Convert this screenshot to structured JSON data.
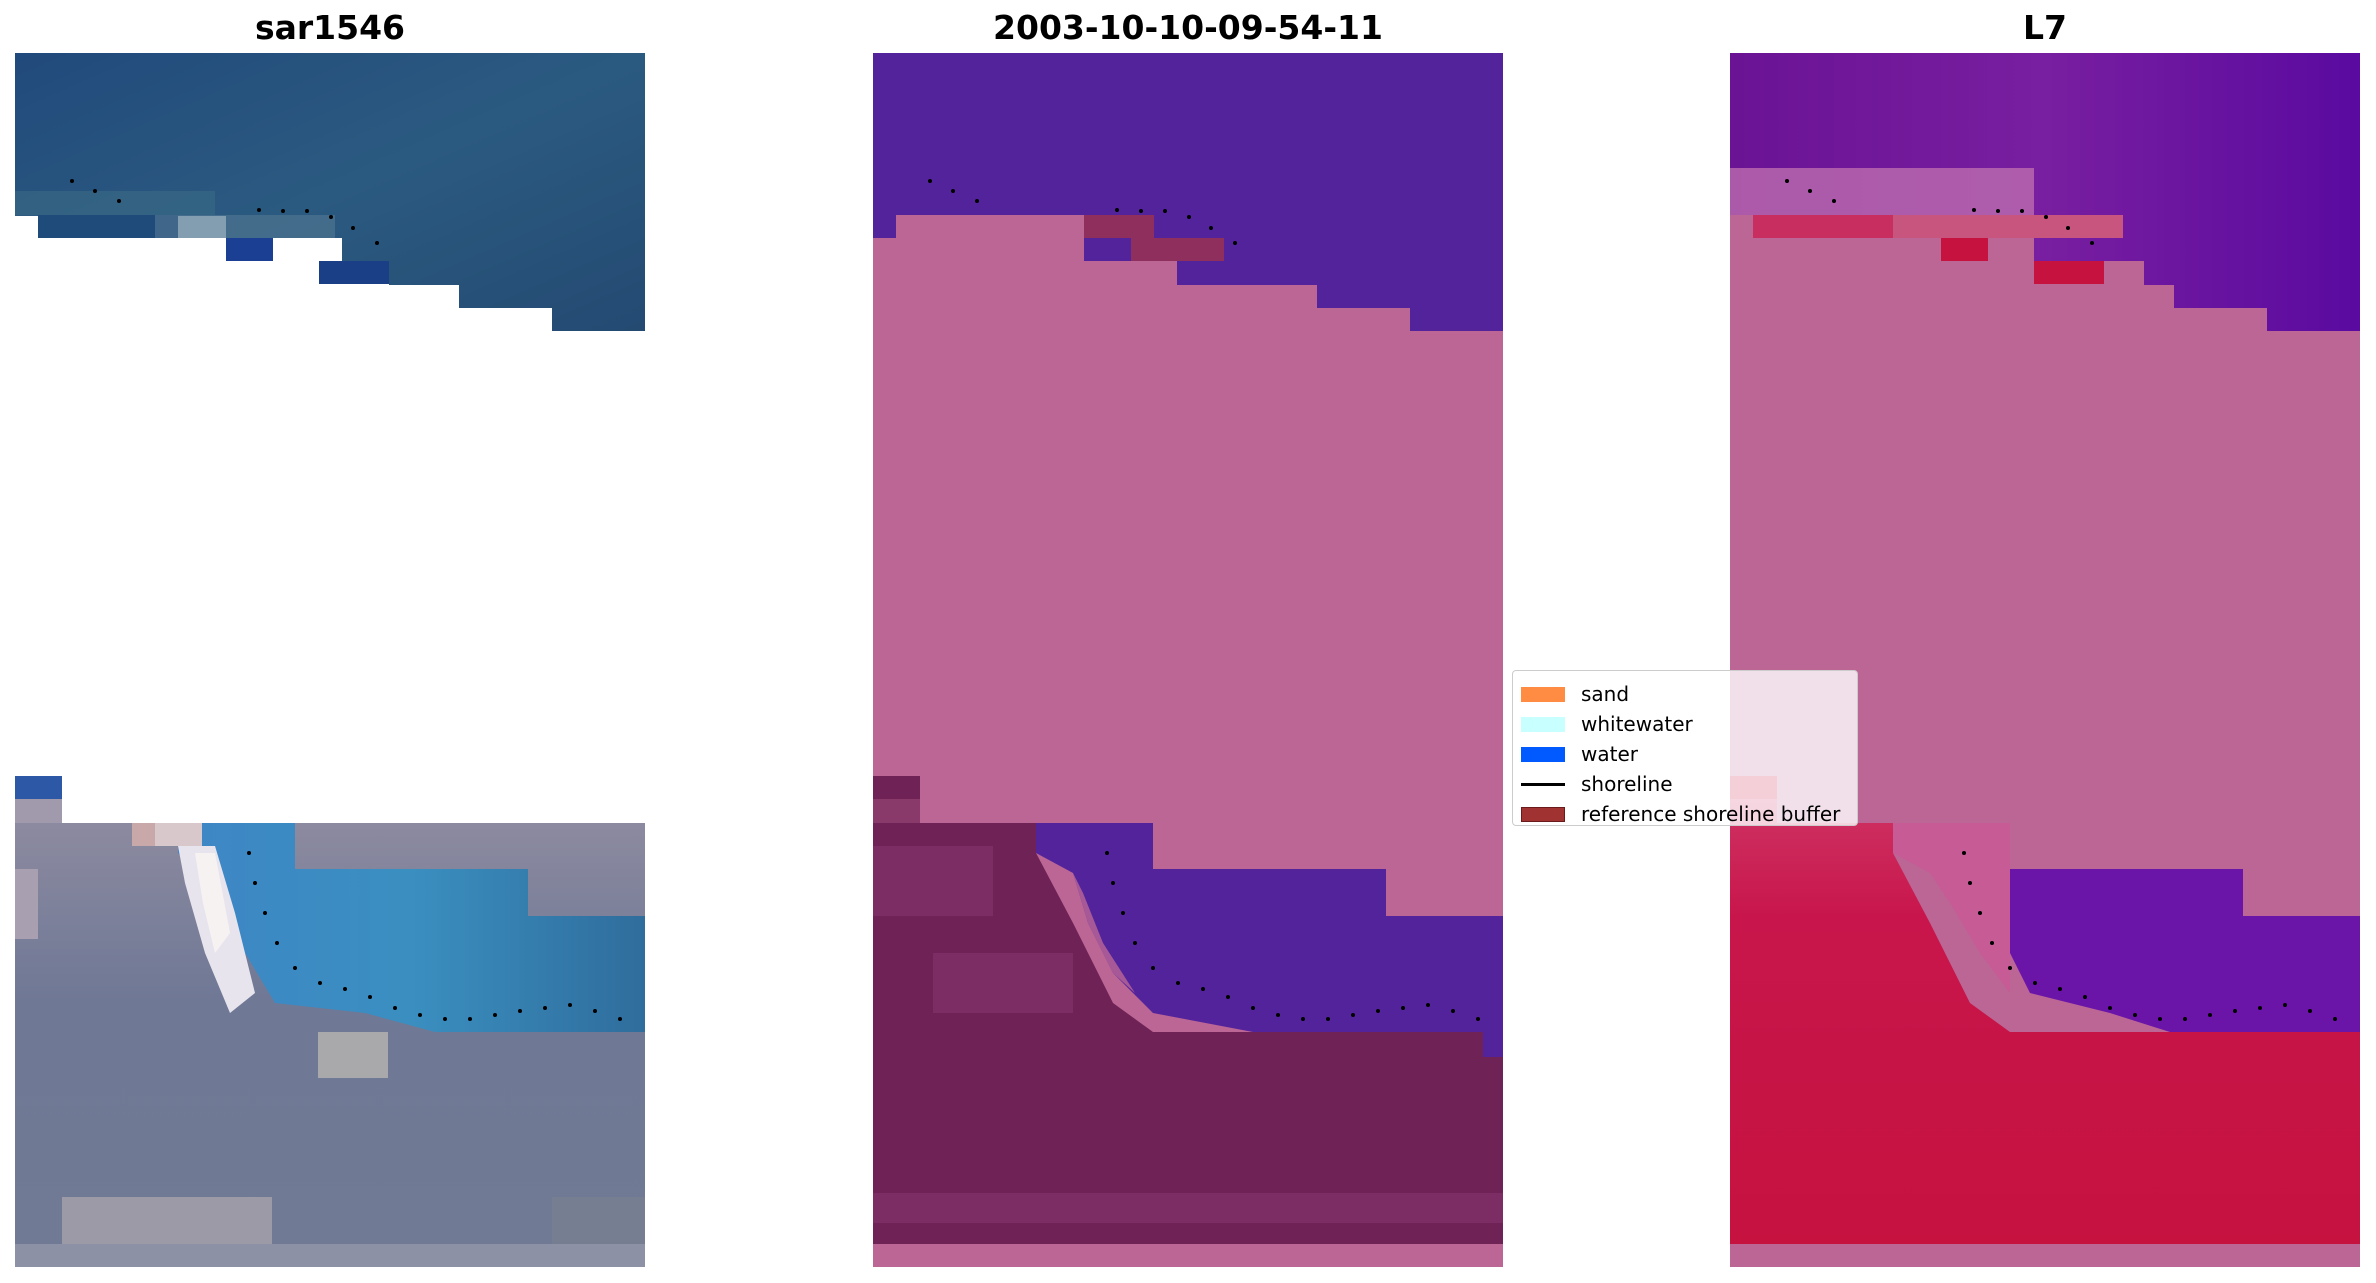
{
  "panels": [
    {
      "title": "sar1546",
      "kind": "rgb"
    },
    {
      "title": "2003-10-10-09-54-11",
      "kind": "classified"
    },
    {
      "title": "L7",
      "kind": "index"
    }
  ],
  "legend": {
    "items": [
      {
        "label": "sand",
        "color": "#ff8c42",
        "type": "patch"
      },
      {
        "label": "whitewater",
        "color": "#c8ffff",
        "type": "patch"
      },
      {
        "label": "water",
        "color": "#005aff",
        "type": "patch"
      },
      {
        "label": "shoreline",
        "color": "#000000",
        "type": "line"
      },
      {
        "label": "reference shoreline buffer",
        "color": "#a03232",
        "type": "patch"
      }
    ]
  },
  "colors": {
    "water_dark": "#224a73",
    "sea_purple": "#53239b",
    "land_pink": "#bb6695",
    "land_dark": "#6e2256",
    "index_red": "#c5123f"
  }
}
